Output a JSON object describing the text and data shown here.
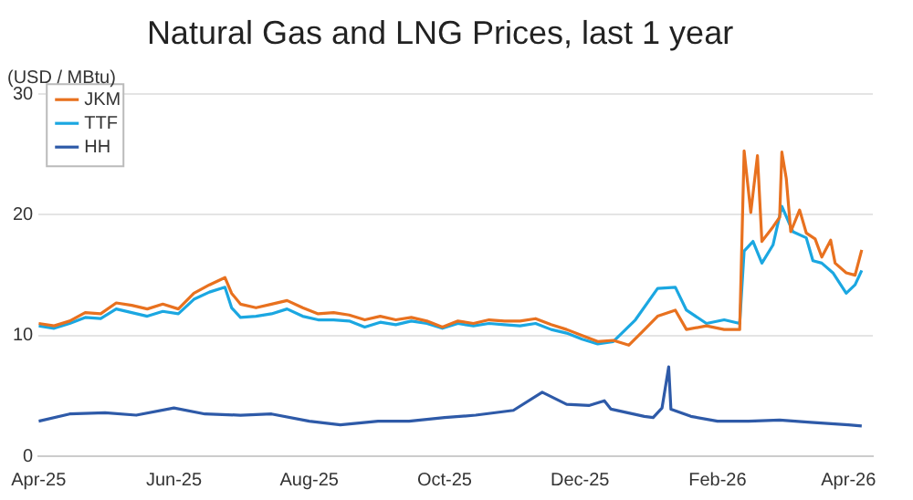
{
  "chart_data": {
    "type": "line",
    "title": "Natural Gas and LNG Prices, last 1 year",
    "ylabel": "(USD / MBtu)",
    "xlim": [
      "2025-04-01",
      "2026-04-12"
    ],
    "xticks": [
      {
        "value": "2025-04-01",
        "label": "Apr-25"
      },
      {
        "value": "2025-06-01",
        "label": "Jun-25"
      },
      {
        "value": "2025-08-01",
        "label": "Aug-25"
      },
      {
        "value": "2025-10-01",
        "label": "Oct-25"
      },
      {
        "value": "2025-12-01",
        "label": "Dec-25"
      },
      {
        "value": "2026-02-01",
        "label": "Feb-26"
      },
      {
        "value": "2026-04-01",
        "label": "Apr-26"
      }
    ],
    "ylim": [
      0,
      30
    ],
    "yticks": [
      0,
      10,
      20,
      30
    ],
    "grid": "y",
    "legend": "top left",
    "marker": "none",
    "line_style": "solid",
    "series": [
      {
        "name": "JKM",
        "color": "#e8711f",
        "x": [
          "2025-04-01",
          "2025-04-08",
          "2025-04-15",
          "2025-04-22",
          "2025-04-29",
          "2025-05-06",
          "2025-05-13",
          "2025-05-20",
          "2025-05-27",
          "2025-06-03",
          "2025-06-10",
          "2025-06-17",
          "2025-06-24",
          "2025-06-27",
          "2025-07-01",
          "2025-07-08",
          "2025-07-15",
          "2025-07-22",
          "2025-07-29",
          "2025-08-05",
          "2025-08-12",
          "2025-08-19",
          "2025-08-26",
          "2025-09-02",
          "2025-09-09",
          "2025-09-16",
          "2025-09-23",
          "2025-09-30",
          "2025-10-07",
          "2025-10-14",
          "2025-10-21",
          "2025-10-28",
          "2025-11-04",
          "2025-11-11",
          "2025-11-18",
          "2025-11-25",
          "2025-12-02",
          "2025-12-09",
          "2025-12-16",
          "2025-12-23",
          "2025-12-29",
          "2026-01-05",
          "2026-01-13",
          "2026-01-18",
          "2026-01-27",
          "2026-02-04",
          "2026-02-11",
          "2026-02-13",
          "2026-02-16",
          "2026-02-19",
          "2026-02-21",
          "2026-02-26",
          "2026-03-01",
          "2026-03-02",
          "2026-03-04",
          "2026-03-06",
          "2026-03-10",
          "2026-03-13",
          "2026-03-17",
          "2026-03-20",
          "2026-03-24",
          "2026-03-26",
          "2026-03-31",
          "2026-04-04",
          "2026-04-07"
        ],
        "values": [
          11.0,
          10.8,
          11.2,
          11.9,
          11.8,
          12.7,
          12.5,
          12.2,
          12.6,
          12.2,
          13.5,
          14.2,
          14.8,
          13.5,
          12.6,
          12.3,
          12.6,
          12.9,
          12.3,
          11.8,
          11.9,
          11.7,
          11.3,
          11.6,
          11.3,
          11.5,
          11.2,
          10.7,
          11.2,
          11.0,
          11.3,
          11.2,
          11.2,
          11.4,
          10.9,
          10.5,
          10.0,
          9.5,
          9.6,
          9.2,
          10.3,
          11.6,
          12.1,
          10.5,
          10.8,
          10.5,
          10.5,
          25.3,
          20.2,
          24.9,
          17.8,
          19.0,
          19.8,
          25.2,
          23.0,
          18.6,
          20.4,
          18.5,
          18.0,
          16.5,
          17.9,
          16.0,
          15.2,
          15.0,
          17.1
        ]
      },
      {
        "name": "TTF",
        "color": "#1ba7e1",
        "x": [
          "2025-04-01",
          "2025-04-08",
          "2025-04-15",
          "2025-04-22",
          "2025-04-29",
          "2025-05-06",
          "2025-05-13",
          "2025-05-20",
          "2025-05-27",
          "2025-06-03",
          "2025-06-10",
          "2025-06-17",
          "2025-06-24",
          "2025-06-27",
          "2025-07-01",
          "2025-07-08",
          "2025-07-15",
          "2025-07-22",
          "2025-07-29",
          "2025-08-05",
          "2025-08-12",
          "2025-08-19",
          "2025-08-26",
          "2025-09-02",
          "2025-09-09",
          "2025-09-16",
          "2025-09-23",
          "2025-09-30",
          "2025-10-07",
          "2025-10-14",
          "2025-10-21",
          "2025-10-28",
          "2025-11-04",
          "2025-11-11",
          "2025-11-18",
          "2025-11-25",
          "2025-12-02",
          "2025-12-09",
          "2025-12-16",
          "2025-12-26",
          "2026-01-05",
          "2026-01-13",
          "2026-01-18",
          "2026-01-27",
          "2026-02-04",
          "2026-02-11",
          "2026-02-13",
          "2026-02-17",
          "2026-02-21",
          "2026-02-26",
          "2026-03-02",
          "2026-03-07",
          "2026-03-13",
          "2026-03-16",
          "2026-03-20",
          "2026-03-25",
          "2026-03-31",
          "2026-04-04",
          "2026-04-07"
        ],
        "values": [
          10.8,
          10.6,
          11.0,
          11.5,
          11.4,
          12.2,
          11.9,
          11.6,
          12.0,
          11.8,
          13.0,
          13.6,
          14.0,
          12.3,
          11.5,
          11.6,
          11.8,
          12.2,
          11.6,
          11.3,
          11.3,
          11.2,
          10.7,
          11.1,
          10.9,
          11.2,
          11.0,
          10.6,
          11.0,
          10.8,
          11.0,
          10.9,
          10.8,
          11.0,
          10.5,
          10.2,
          9.7,
          9.3,
          9.5,
          11.3,
          13.9,
          14.0,
          12.1,
          11.0,
          11.3,
          11.0,
          17.0,
          17.8,
          16.0,
          17.5,
          20.7,
          18.6,
          18.1,
          16.2,
          16.0,
          15.2,
          13.5,
          14.2,
          15.4
        ]
      },
      {
        "name": "HH",
        "color": "#2e5aa8",
        "x": [
          "2025-04-01",
          "2025-04-15",
          "2025-05-01",
          "2025-05-15",
          "2025-06-01",
          "2025-06-15",
          "2025-07-01",
          "2025-07-15",
          "2025-08-01",
          "2025-08-15",
          "2025-09-01",
          "2025-09-15",
          "2025-10-01",
          "2025-10-15",
          "2025-11-01",
          "2025-11-14",
          "2025-11-25",
          "2025-12-05",
          "2025-12-12",
          "2025-12-15",
          "2025-12-30",
          "2026-01-03",
          "2026-01-07",
          "2026-01-10",
          "2026-01-11",
          "2026-01-20",
          "2026-02-01",
          "2026-02-15",
          "2026-03-01",
          "2026-03-15",
          "2026-04-01",
          "2026-04-07"
        ],
        "values": [
          2.9,
          3.5,
          3.6,
          3.4,
          4.0,
          3.5,
          3.4,
          3.5,
          2.9,
          2.6,
          2.9,
          2.9,
          3.2,
          3.4,
          3.8,
          5.3,
          4.3,
          4.2,
          4.6,
          3.9,
          3.3,
          3.2,
          4.0,
          7.4,
          3.9,
          3.3,
          2.9,
          2.9,
          3.0,
          2.8,
          2.6,
          2.5
        ]
      }
    ]
  }
}
